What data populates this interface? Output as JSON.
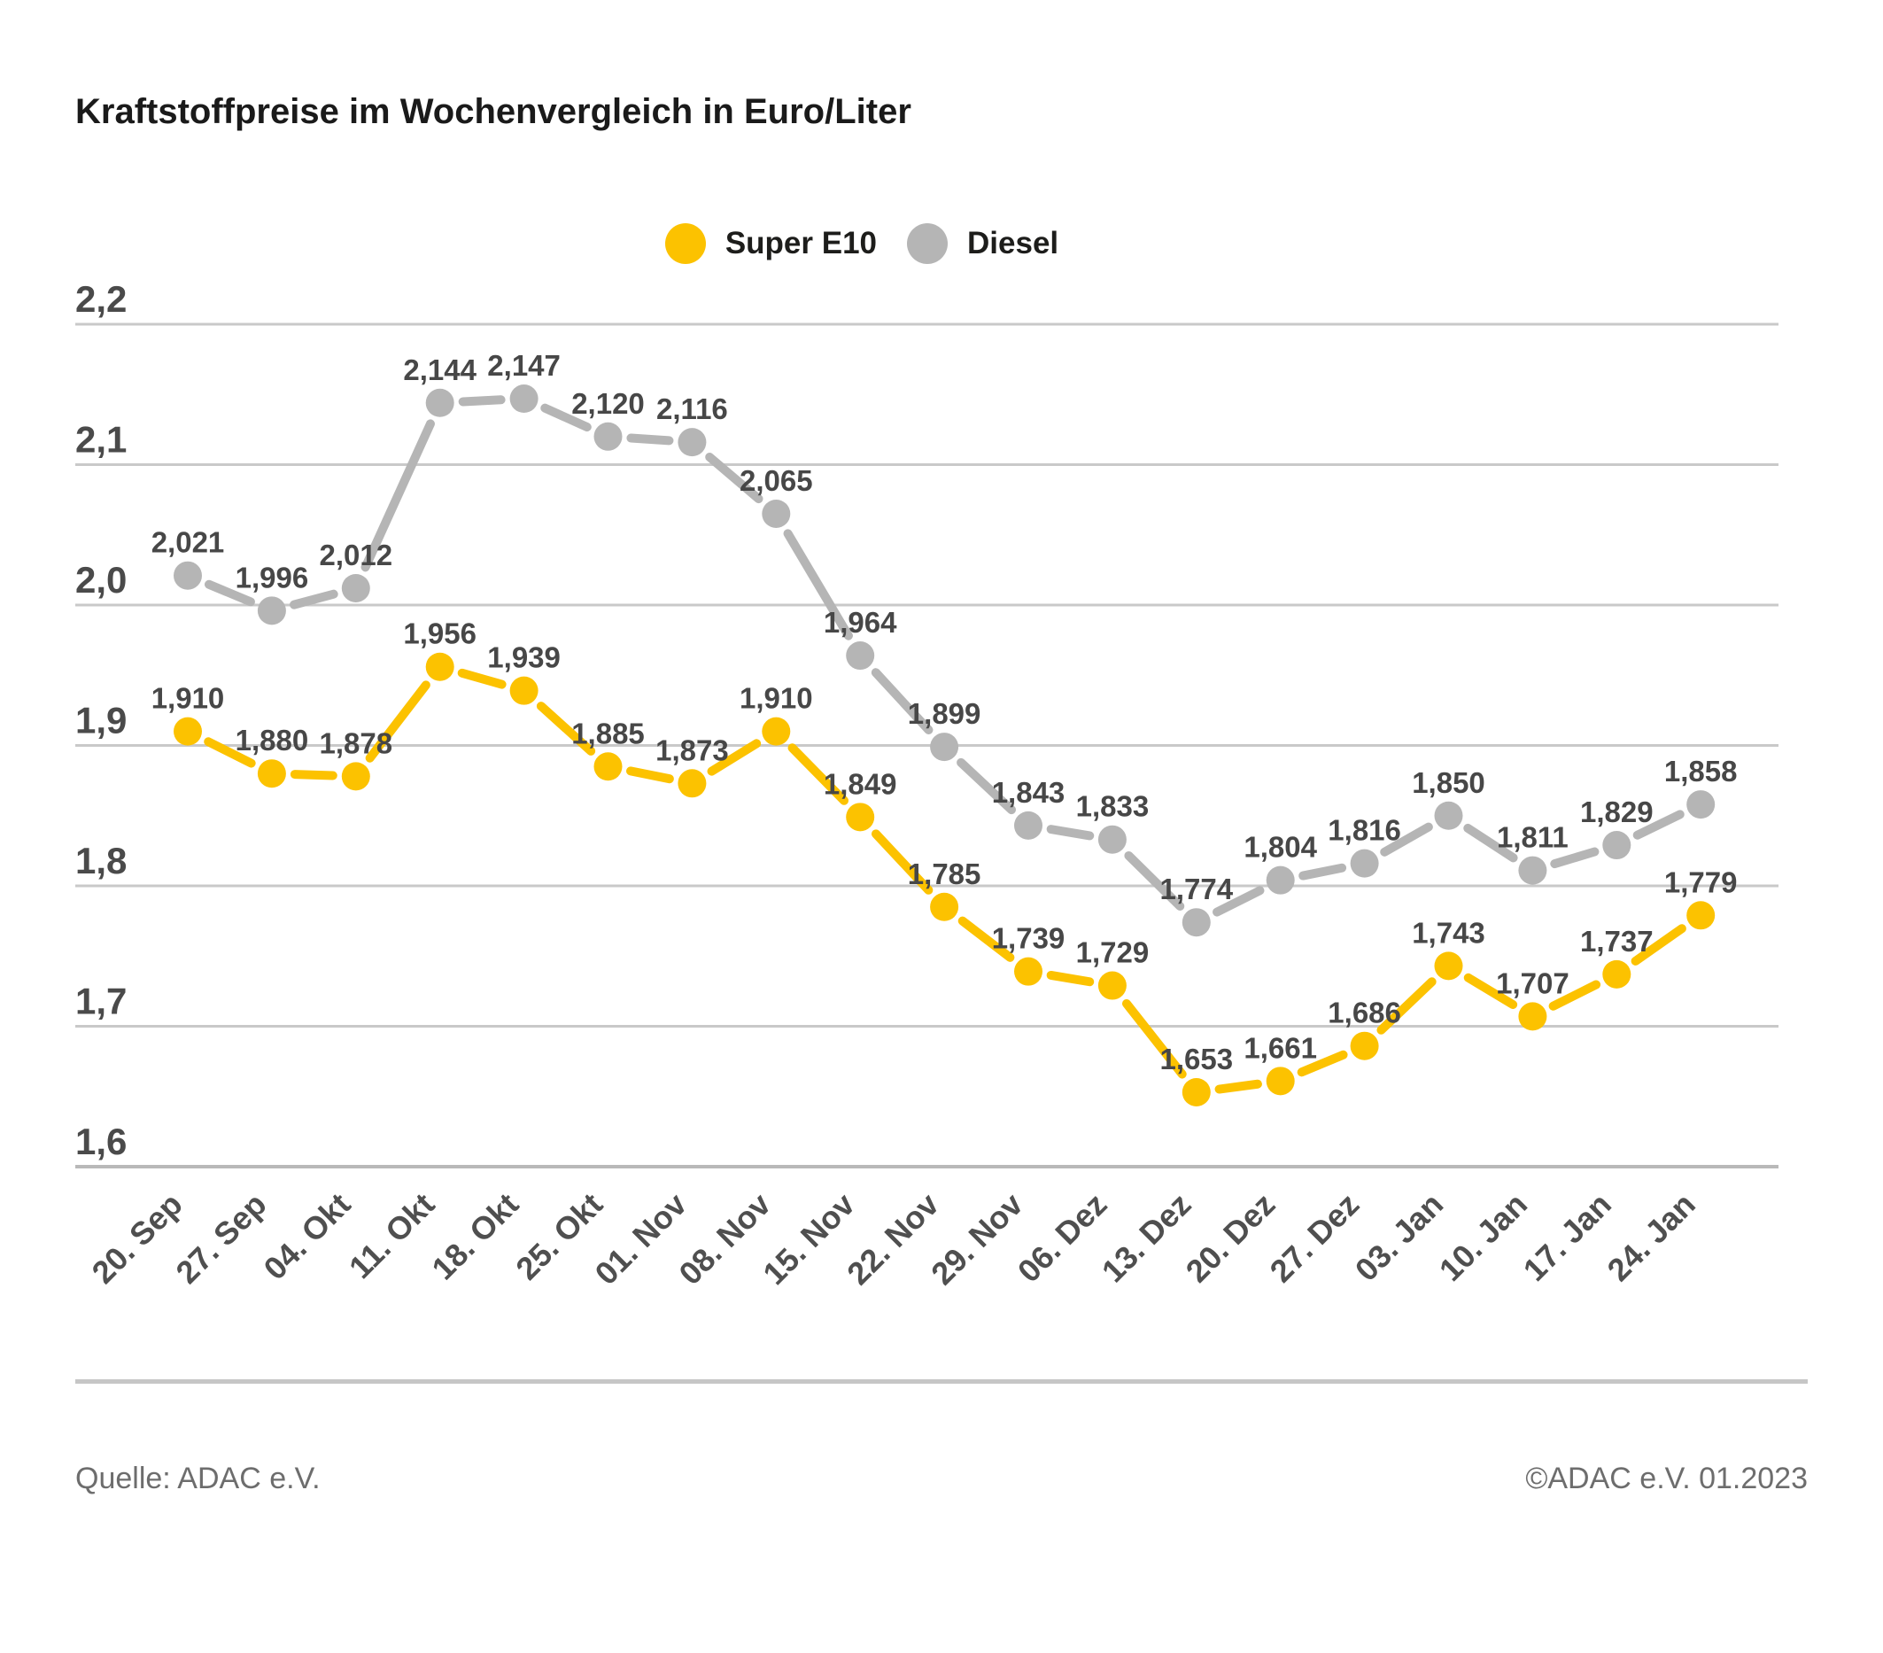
{
  "title": "Kraftstoffpreise im Wochenvergleich in Euro/Liter",
  "footer": {
    "source": "Quelle: ADAC e.V.",
    "copyright": "©ADAC e.V. 01.2023"
  },
  "colors": {
    "super_e10": "#fcc200",
    "diesel": "#b5b5b5",
    "gridline": "#c9c9c9",
    "baseline": "#b9b9b9",
    "tick_text": "#4a4a4a",
    "value_label_text": "#474747",
    "x_label_text": "#4f4f4f"
  },
  "chart_data": {
    "type": "line",
    "title": "Kraftstoffpreise im Wochenvergleich in Euro/Liter",
    "unit": "Euro/Liter",
    "legend_position": "top",
    "grid": "horizontal",
    "categories": [
      "20. Sep",
      "27. Sep",
      "04. Okt",
      "11. Okt",
      "18. Okt",
      "25. Okt",
      "01. Nov",
      "08. Nov",
      "15. Nov",
      "22. Nov",
      "29. Nov",
      "06. Dez",
      "13. Dez",
      "20. Dez",
      "27. Dez",
      "03. Jan",
      "10. Jan",
      "17. Jan",
      "24. Jan"
    ],
    "series": [
      {
        "name": "Super E10",
        "color": "#fcc200",
        "values": [
          1.91,
          1.88,
          1.878,
          1.956,
          1.939,
          1.885,
          1.873,
          1.91,
          1.849,
          1.785,
          1.739,
          1.729,
          1.653,
          1.661,
          1.686,
          1.743,
          1.707,
          1.737,
          1.779
        ]
      },
      {
        "name": "Diesel",
        "color": "#b5b5b5",
        "values": [
          2.021,
          1.996,
          2.012,
          2.144,
          2.147,
          2.12,
          2.116,
          2.065,
          1.964,
          1.899,
          1.843,
          1.833,
          1.774,
          1.804,
          1.816,
          1.85,
          1.811,
          1.829,
          1.858
        ]
      }
    ],
    "yticks": [
      2.2,
      2.1,
      2.0,
      1.9,
      1.8,
      1.7,
      1.6
    ],
    "ylim": [
      1.55,
      2.25
    ],
    "decimal_separator": ","
  }
}
